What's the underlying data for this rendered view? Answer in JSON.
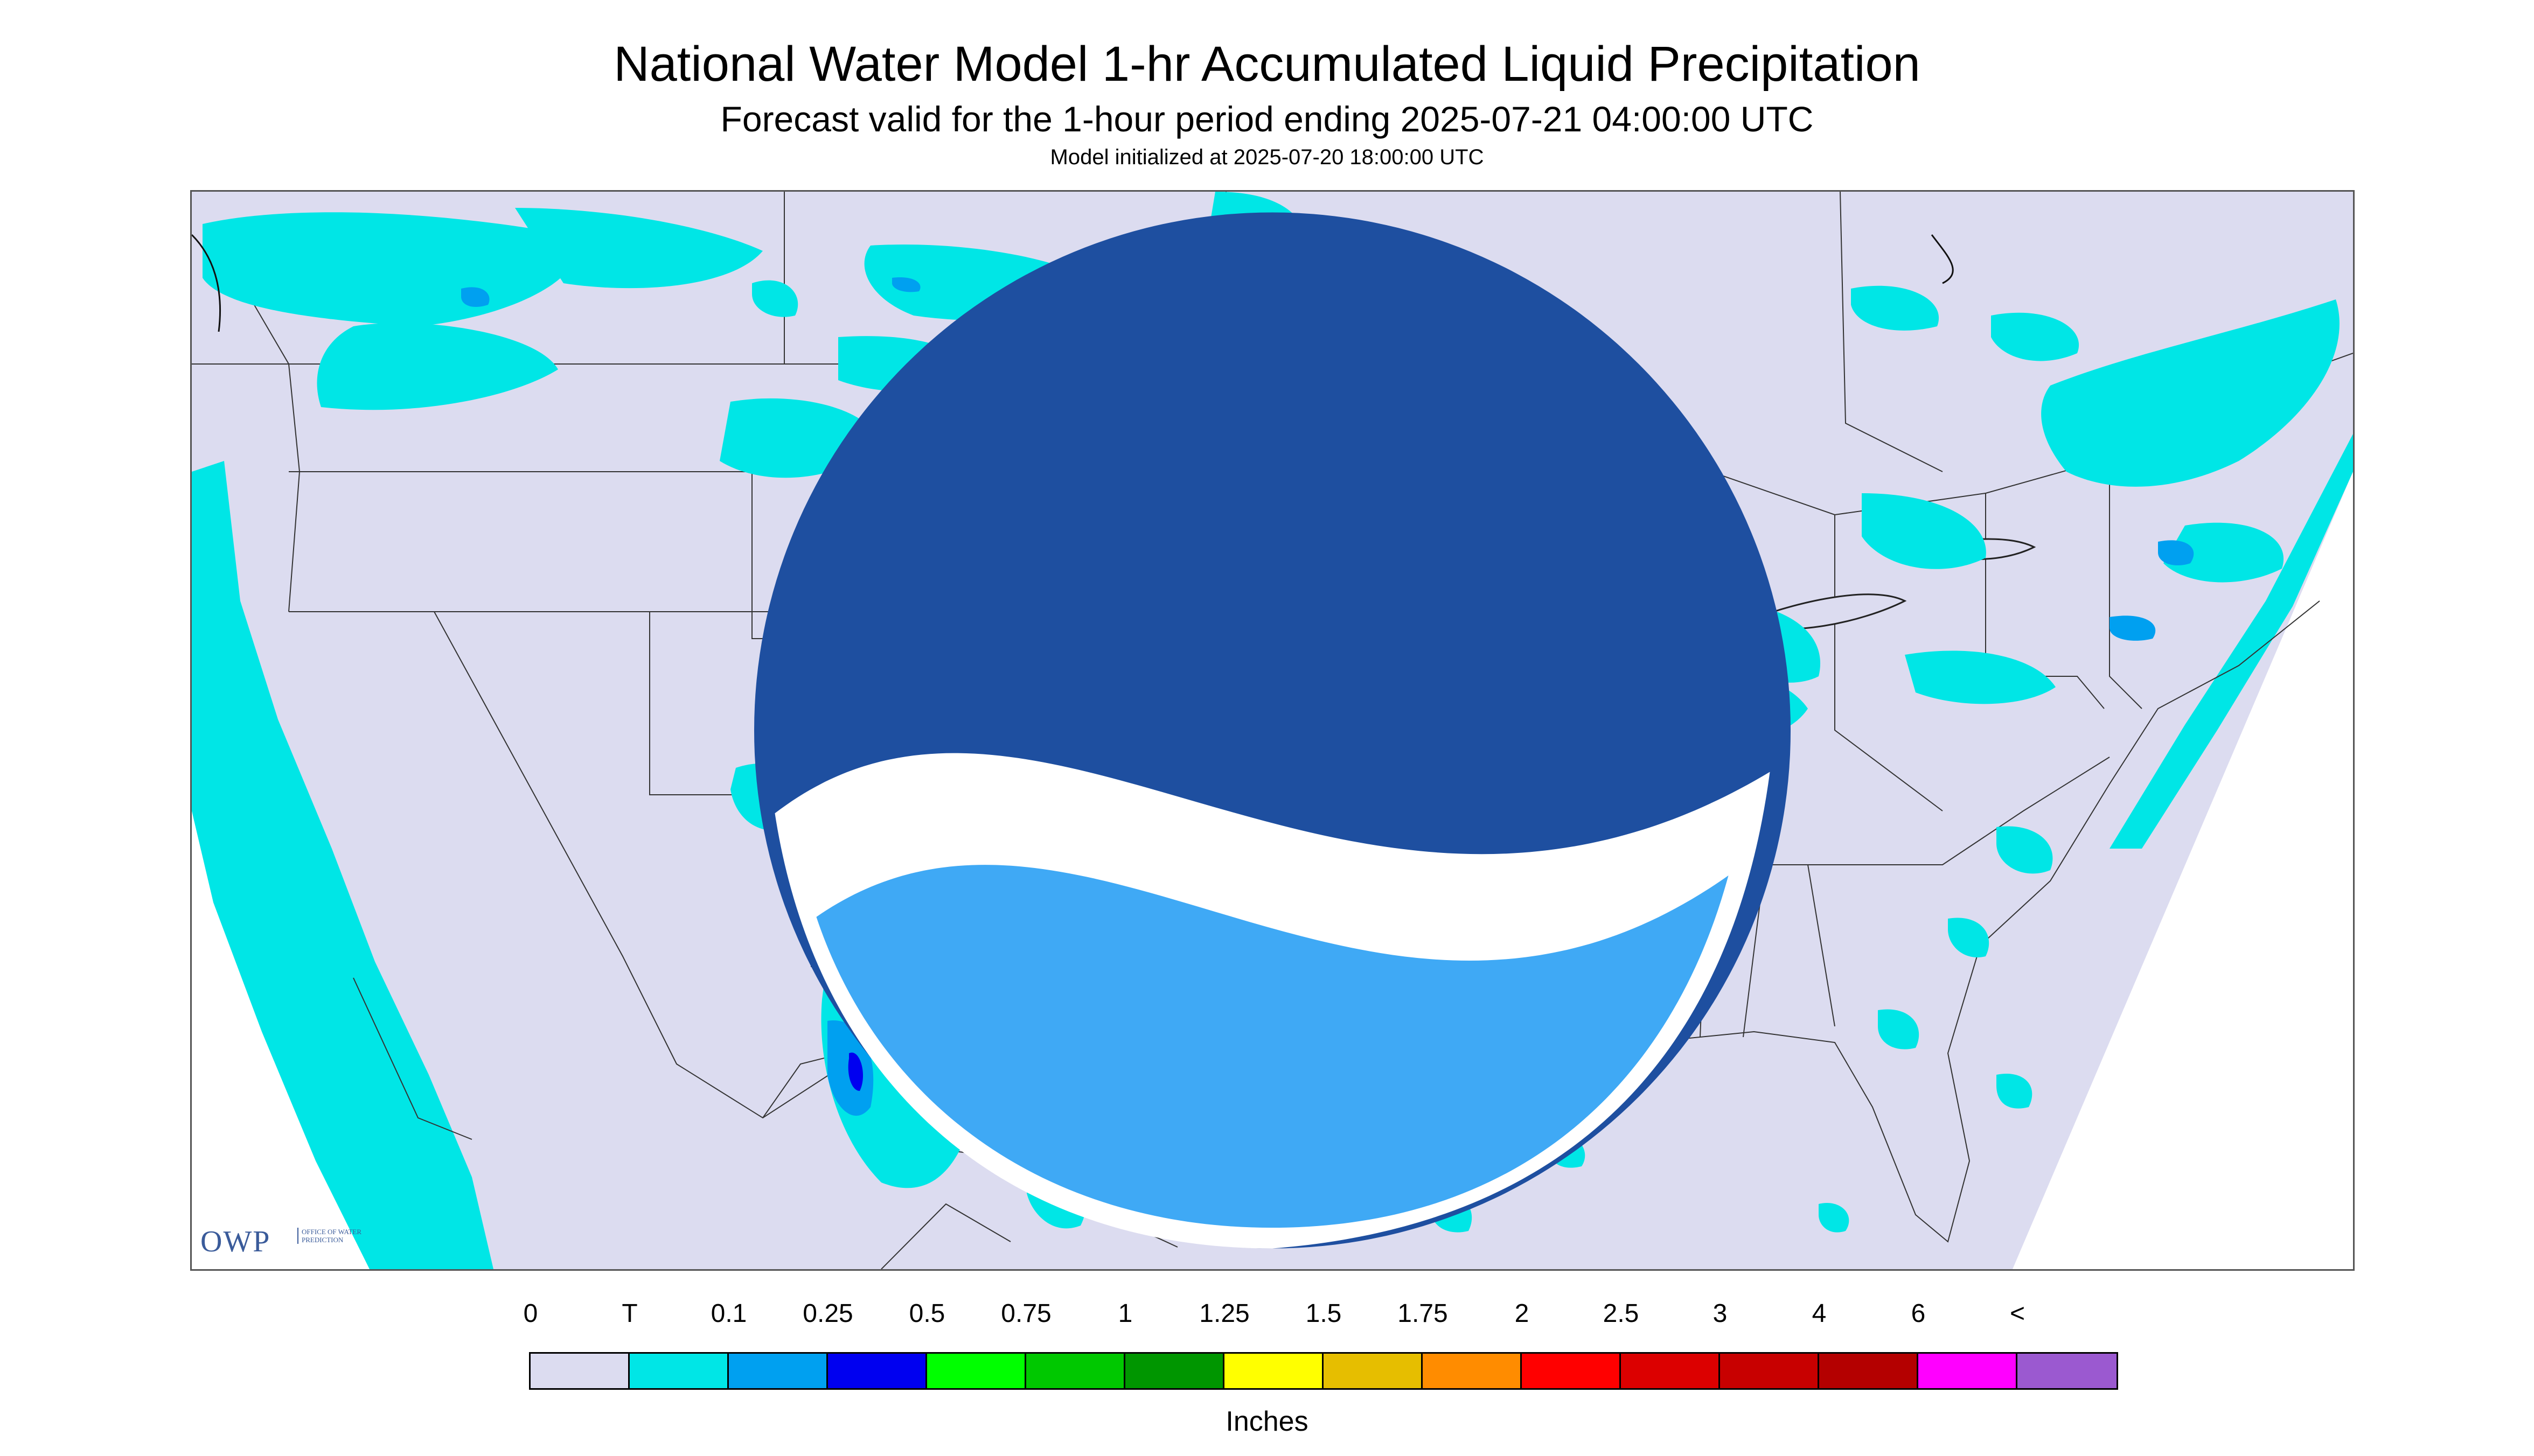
{
  "header": {
    "title": "National Water Model 1-hr Accumulated Liquid Precipitation",
    "subtitle": "Forecast valid for the 1-hour period ending 2025-07-21 04:00:00 UTC",
    "init": "Model initialized at 2025-07-20 18:00:00 UTC"
  },
  "logos": {
    "owp_text": "OWP",
    "owp_sub": "Office of Water Prediction",
    "noaa_text": "NOAA"
  },
  "colors": {
    "background": "#dcdcf0",
    "trace": "#00e6e6",
    "light": "#00a0f0",
    "medium": "#0000f0",
    "green": "#00f000",
    "border": "#555555"
  },
  "legend": {
    "labels": [
      "0",
      "T",
      "0.1",
      "0.25",
      "0.5",
      "0.75",
      "1",
      "1.25",
      "1.5",
      "1.75",
      "2",
      "2.5",
      "3",
      "4",
      "6",
      "<"
    ],
    "colors": [
      "#dcdcf0",
      "#00e6e6",
      "#00a0f0",
      "#0000f0",
      "#00ff00",
      "#00c800",
      "#009600",
      "#ffff00",
      "#e6be00",
      "#ff8c00",
      "#ff0000",
      "#dc0000",
      "#c80000",
      "#b40000",
      "#ff00ff",
      "#9b59d0"
    ],
    "unit": "Inches"
  }
}
